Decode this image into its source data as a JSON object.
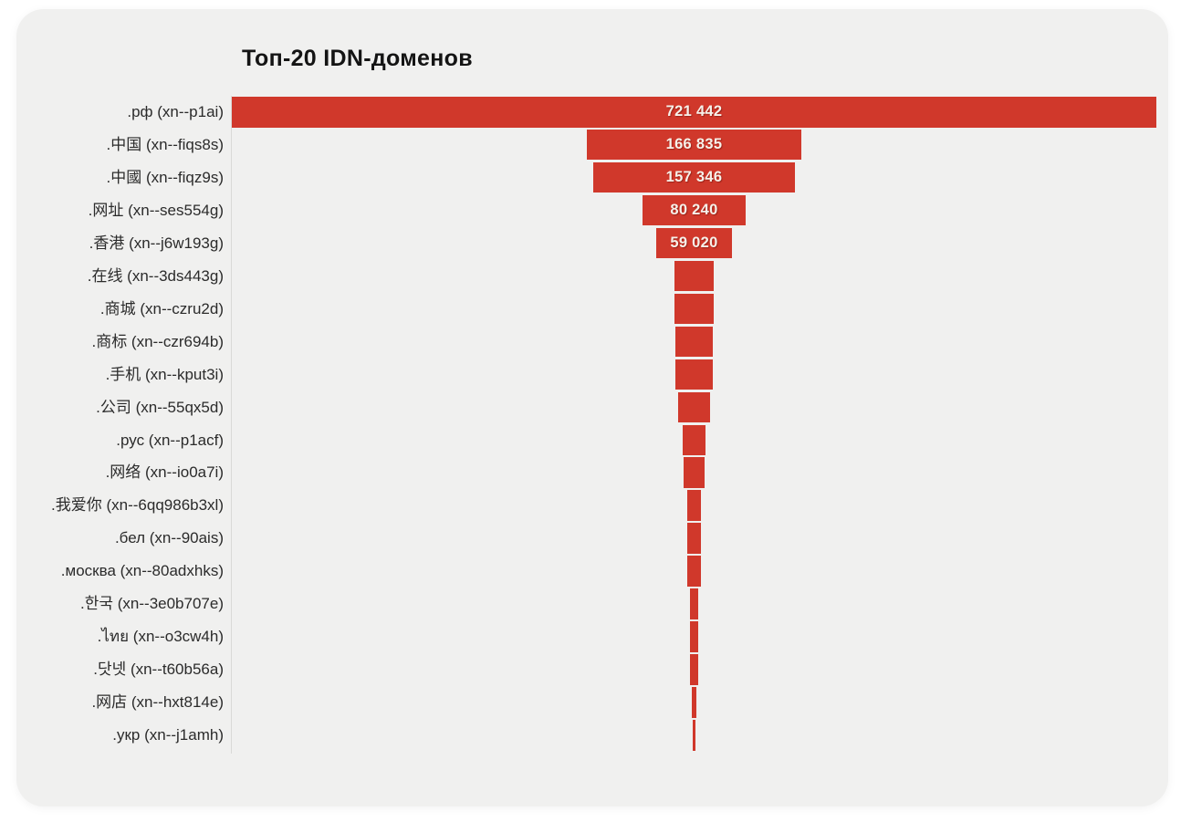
{
  "title": "Топ-20 IDN-доменов",
  "colors": {
    "bar": "#d0382b",
    "card_background": "#f0f0ef",
    "page_background": "#ffffff",
    "value_text": "#f6f1ea",
    "label_text": "#2b2b2b",
    "axis_line": "#d9d9d7"
  },
  "chart_data": {
    "type": "bar",
    "orientation": "horizontal-centered-funnel",
    "title": "Топ-20 IDN-доменов",
    "xlabel": "",
    "ylabel": "",
    "legend": "none",
    "grid": "off",
    "xlim": [
      0,
      721442
    ],
    "bar_color": "#d0382b",
    "categories": [
      ".рф (xn--p1ai)",
      ".中国 (xn--fiqs8s)",
      ".中國 (xn--fiqz9s)",
      ".网址 (xn--ses554g)",
      ".香港 (xn--j6w193g)",
      ".在线 (xn--3ds443g)",
      ".商城 (xn--czru2d)",
      ".商标 (xn--czr694b)",
      ".手机 (xn--kput3i)",
      ".公司 (xn--55qx5d)",
      ".рус (xn--p1acf)",
      ".网络 (xn--io0a7i)",
      ".我爱你 (xn--6qq986b3xl)",
      ".бел (xn--90ais)",
      ".москва (xn--80adxhks)",
      ".한국 (xn--3e0b707e)",
      ".ไทย (xn--o3cw4h)",
      ".닷넷 (xn--t60b56a)",
      ".网店 (xn--hxt814e)",
      ".укр (xn--j1amh)"
    ],
    "values": [
      721442,
      166835,
      157346,
      80240,
      59020,
      31300,
      30000,
      29200,
      28800,
      24700,
      18000,
      16600,
      10700,
      10200,
      10000,
      6900,
      6500,
      6300,
      2900,
      2800
    ],
    "value_labels": [
      "721 442",
      "166 835",
      "157 346",
      "80 240",
      "59 020",
      "",
      "",
      "",
      "",
      "",
      "",
      "",
      "",
      "",
      "",
      "",
      "",
      "",
      "",
      ""
    ],
    "values_estimated_from_pixels": [
      false,
      false,
      false,
      false,
      false,
      true,
      true,
      true,
      true,
      true,
      true,
      true,
      true,
      true,
      true,
      true,
      true,
      true,
      true,
      true
    ]
  }
}
